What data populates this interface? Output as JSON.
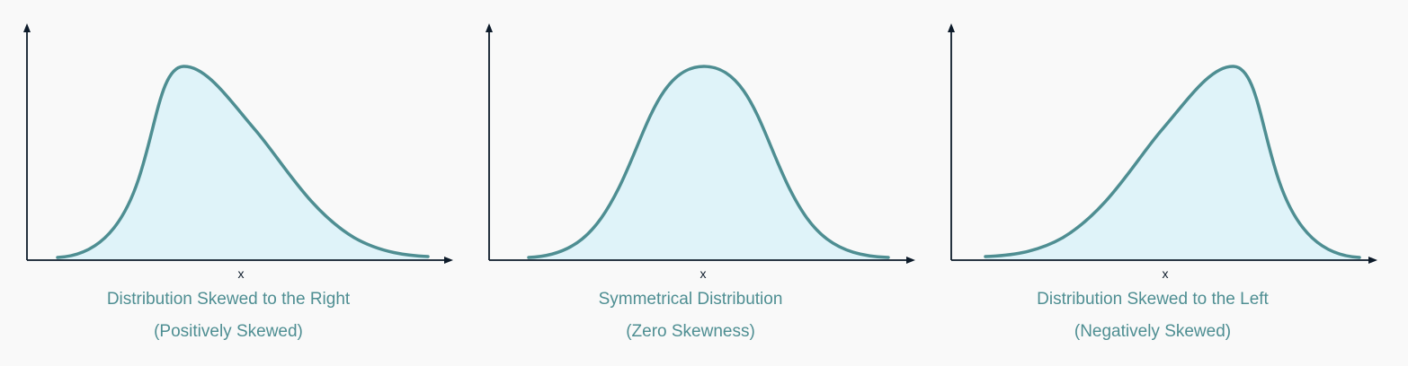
{
  "panels": [
    {
      "x_label": "x",
      "title": "Distribution Skewed to the Right",
      "subtitle": "(Positively Skewed)",
      "skew": "positive"
    },
    {
      "x_label": "x",
      "title": "Symmetrical Distribution",
      "subtitle": "(Zero Skewness)",
      "skew": "zero"
    },
    {
      "x_label": "x",
      "title": "Distribution Skewed to the Left",
      "subtitle": "(Negatively Skewed)",
      "skew": "negative"
    }
  ],
  "colors": {
    "curve": "#4e8e92",
    "fill": "#dff3f9",
    "axis": "#0d1b2a",
    "caption": "#4e8e92",
    "background": "#f9f9f9"
  }
}
